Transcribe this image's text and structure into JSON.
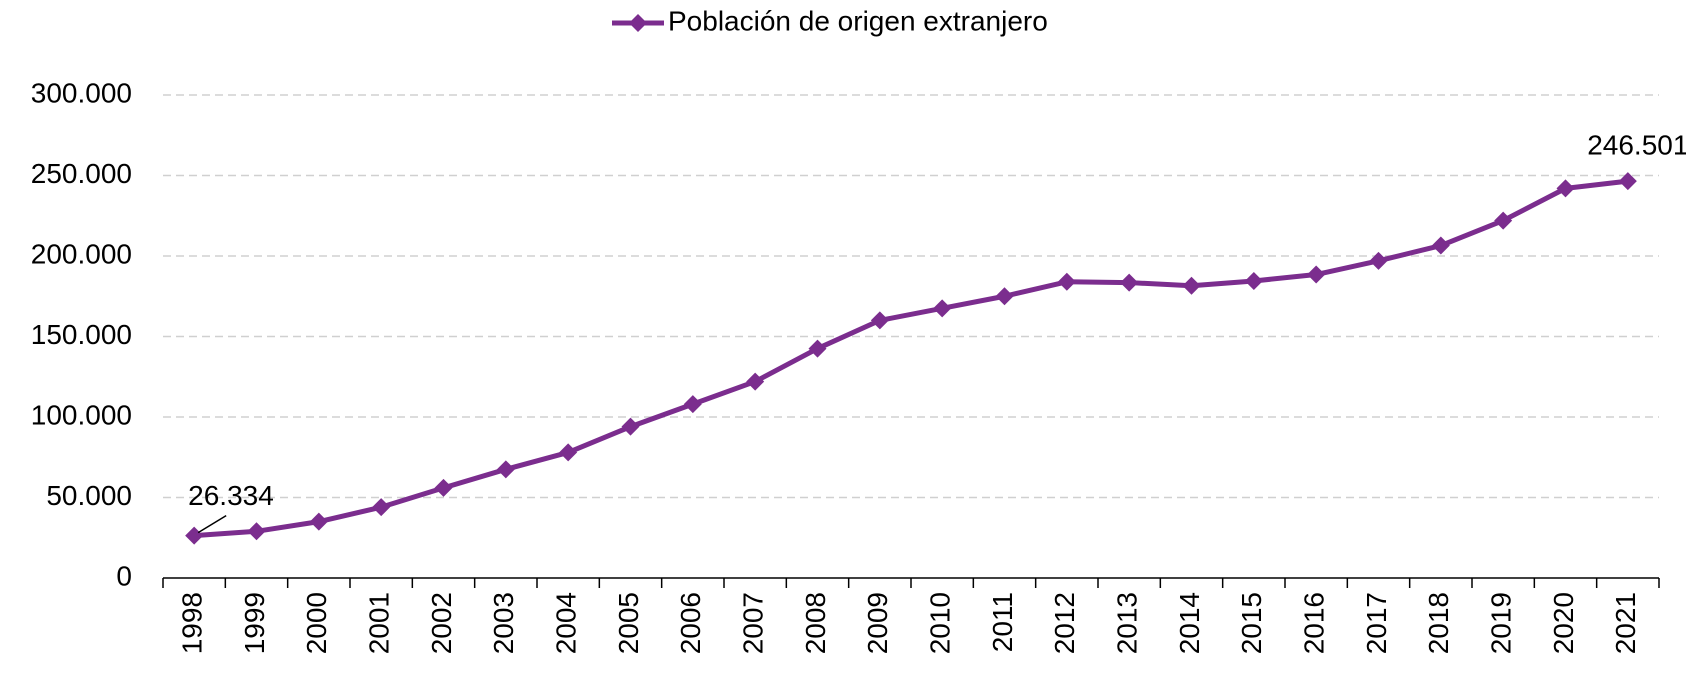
{
  "chart_data": {
    "type": "line",
    "categories": [
      "1998",
      "1999",
      "2000",
      "2001",
      "2002",
      "2003",
      "2004",
      "2005",
      "2006",
      "2007",
      "2008",
      "2009",
      "2010",
      "2011",
      "2012",
      "2013",
      "2014",
      "2015",
      "2016",
      "2017",
      "2018",
      "2019",
      "2020",
      "2021"
    ],
    "series": [
      {
        "name": "Población de origen extranjero",
        "color": "#7b2d8e",
        "values": [
          26334,
          29000,
          35000,
          44000,
          56000,
          67500,
          78000,
          94000,
          108000,
          122000,
          142500,
          160000,
          167500,
          175000,
          184000,
          183500,
          181500,
          184500,
          188500,
          197000,
          206500,
          222000,
          242000,
          246501
        ],
        "value_labels": [
          "26.334",
          null,
          null,
          null,
          null,
          null,
          null,
          null,
          null,
          null,
          null,
          null,
          null,
          null,
          null,
          null,
          null,
          null,
          null,
          null,
          null,
          null,
          null,
          "246.501"
        ]
      }
    ],
    "ylim": [
      0,
      300000
    ],
    "yticks": [
      0,
      {
        "value": 50000,
        "label": "50.000"
      },
      {
        "value": 100000,
        "label": "100.000"
      },
      {
        "value": 150000,
        "label": "150.000"
      },
      {
        "value": 200000,
        "label": "200.000"
      },
      {
        "value": 250000,
        "label": "250.000"
      },
      {
        "value": 300000,
        "label": "300.000"
      }
    ],
    "grid": true,
    "legend": "top"
  }
}
